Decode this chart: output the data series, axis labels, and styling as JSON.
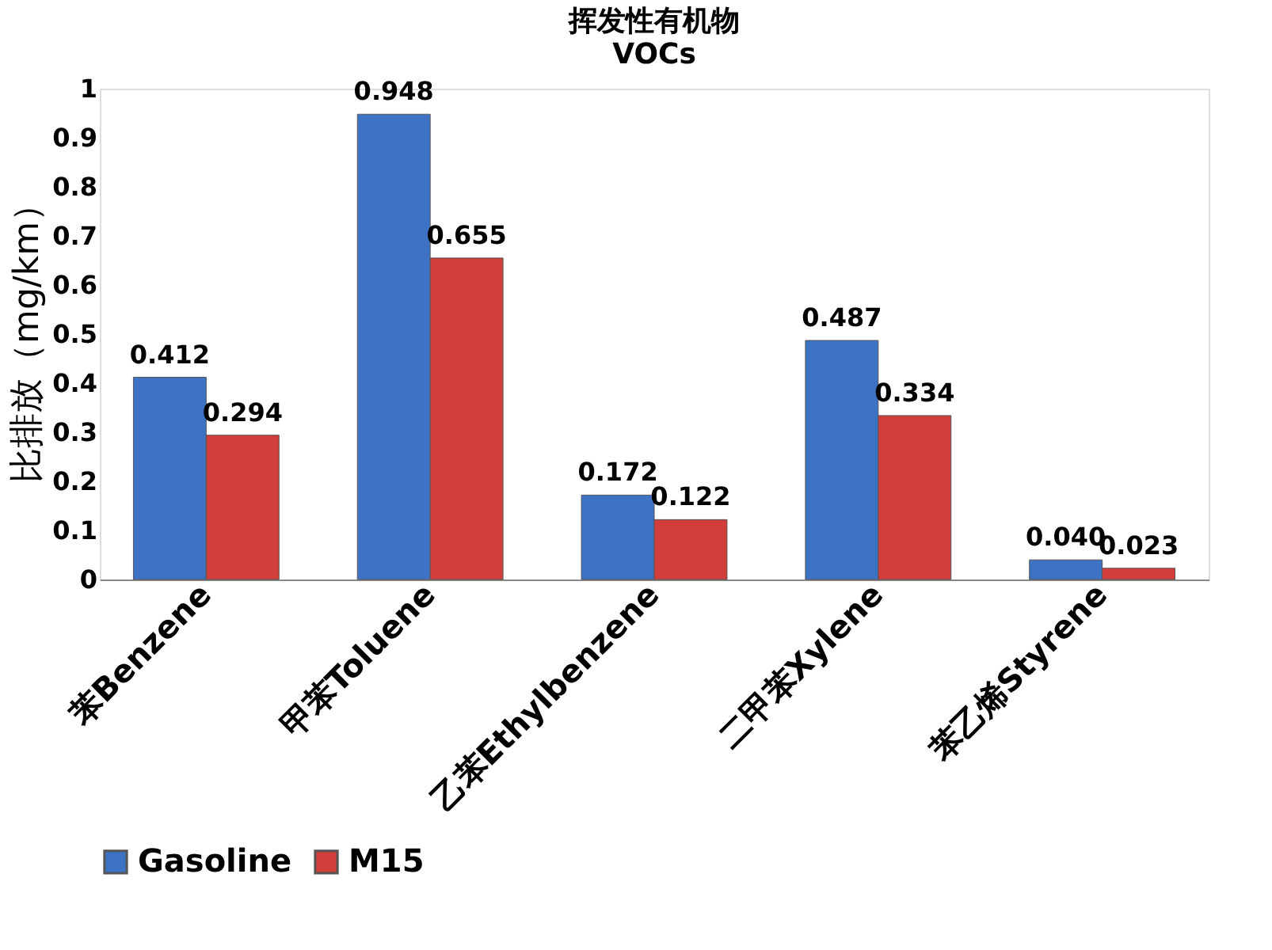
{
  "chart_data": {
    "type": "bar",
    "title": "挥发性有机物",
    "subtitle": "VOCs",
    "ylabel": "比排放（mg/km）",
    "categories": [
      "苯Benzene",
      "甲苯Toluene",
      "乙苯Ethylbenzene",
      "二甲苯Xylene",
      "苯乙烯Styrene"
    ],
    "series": [
      {
        "name": "Gasoline",
        "color": "#3d72c4",
        "values": [
          0.412,
          0.948,
          0.172,
          0.487,
          0.04
        ],
        "value_labels": [
          "0.412",
          "0.948",
          "0.172",
          "0.487",
          "0.040"
        ]
      },
      {
        "name": "M15",
        "color": "#d23f3b",
        "values": [
          0.294,
          0.655,
          0.122,
          0.334,
          0.023
        ],
        "value_labels": [
          "0.294",
          "0.655",
          "0.122",
          "0.334",
          "0.023"
        ]
      }
    ],
    "ylim": [
      0,
      1
    ],
    "yticks": [
      0,
      0.1,
      0.2,
      0.3,
      0.4,
      0.5,
      0.6,
      0.7,
      0.8,
      0.9,
      1
    ],
    "grid": false,
    "legend": "bottom"
  }
}
